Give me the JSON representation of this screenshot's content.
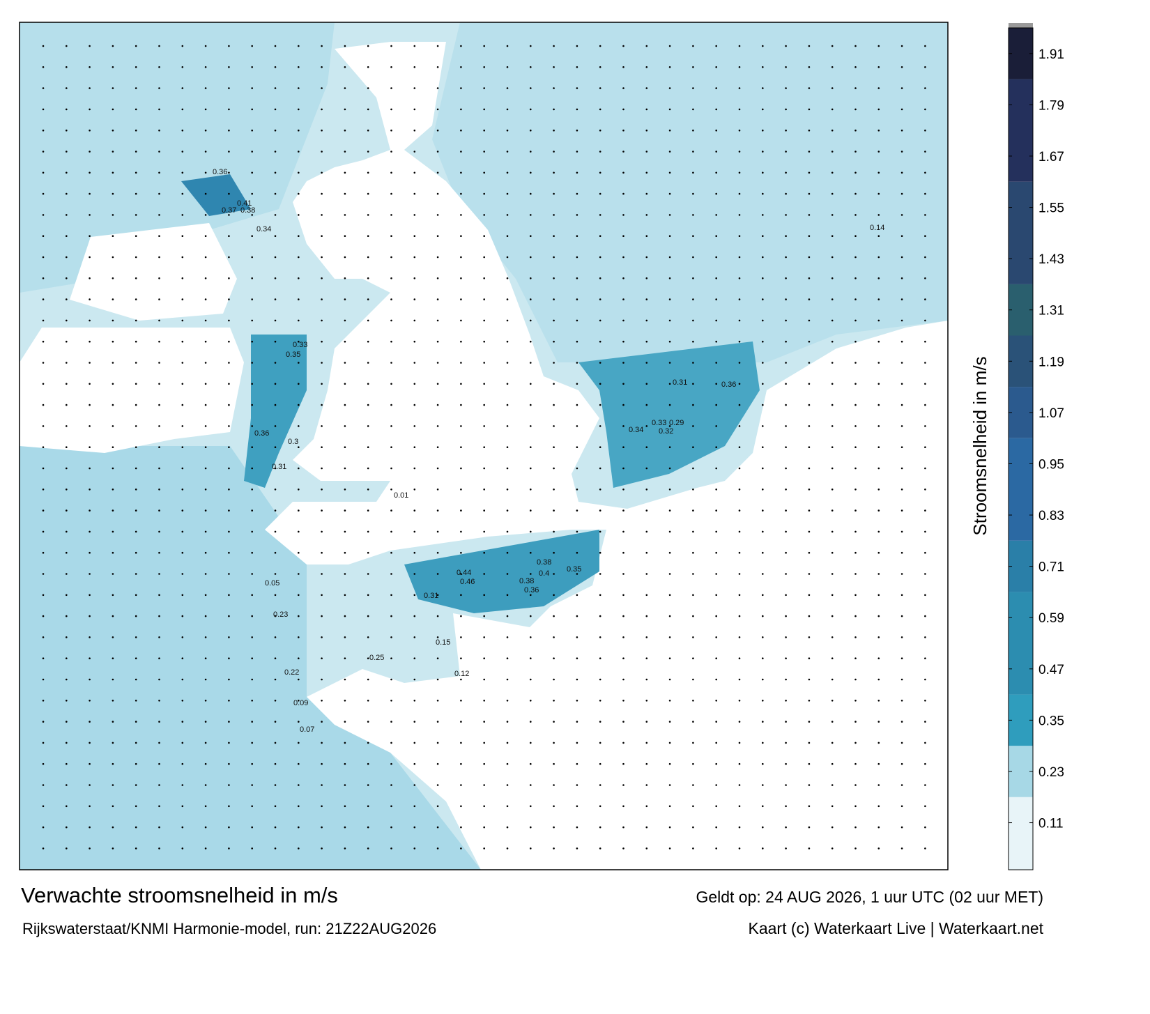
{
  "header": {
    "title": "Verwachte stroomsnelheid in m/s",
    "subtitle": "Rijkswaterstaat/KNMI Harmonie-model, run: 21Z22AUG2026",
    "valid_time": "Geldt op: 24 AUG 2026, 1 uur UTC (02 uur MET)",
    "credit": "Kaart (c) Waterkaart Live | Waterkaart.net"
  },
  "colorbar": {
    "label": "Stroomsnelheid in m/s",
    "lim": [
      0,
      1.97
    ],
    "ticks": [
      0.11,
      0.23,
      0.35,
      0.47,
      0.59,
      0.71,
      0.83,
      0.95,
      1.07,
      1.19,
      1.31,
      1.43,
      1.55,
      1.67,
      1.79,
      1.91
    ],
    "boundaries": [
      0,
      0.17,
      0.29,
      0.41,
      0.65,
      0.77,
      1.01,
      1.13,
      1.25,
      1.37,
      1.61,
      1.85,
      1.97
    ],
    "colors": [
      "#e8f4f8",
      "#a7d8e6",
      "#2f9dbd",
      "#2c8db0",
      "#2a7fa8",
      "#2b69a3",
      "#2b5a8e",
      "#2a5278",
      "#2a5f6e",
      "#2a4870",
      "#24305c",
      "#1a1e38"
    ]
  },
  "map_labels": [
    0.41,
    0.38,
    0.36,
    0.37,
    0.34,
    0.33,
    0.35,
    0.36,
    0.31,
    0.3,
    0.44,
    0.46,
    0.38,
    0.36,
    0.35,
    0.4,
    0.31,
    0.38,
    0.34,
    0.33,
    0.29,
    0.32,
    0.36,
    0.31,
    0.23,
    0.22,
    0.25,
    0.15,
    0.12,
    0.09,
    0.05,
    0.01,
    0.07,
    0.14
  ]
}
